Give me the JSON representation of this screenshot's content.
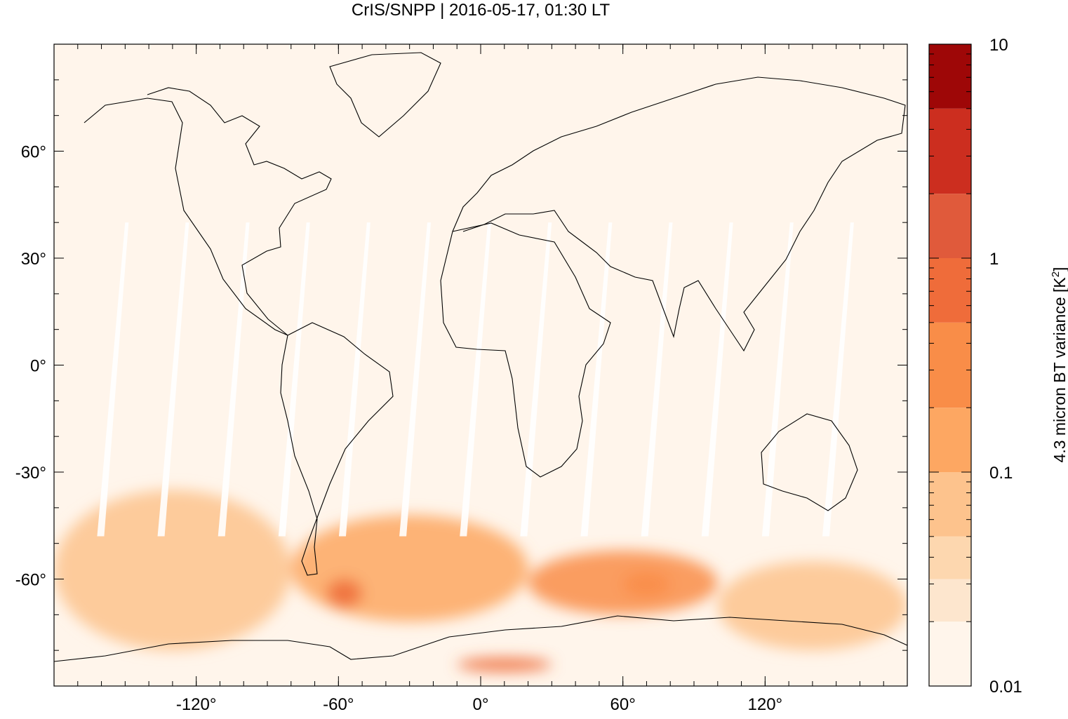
{
  "chart_data": {
    "type": "heatmap",
    "title": "CrIS/SNPP | 2016-05-17, 01:30 LT",
    "xlabel": "",
    "ylabel": "",
    "colorbar_label_main": "4.3 micron BT variance [K",
    "colorbar_label_sup": "2",
    "colorbar_label_end": "]",
    "xlim": [
      -180,
      180
    ],
    "ylim": [
      -90,
      90
    ],
    "xticks": [
      {
        "value": -120,
        "label": "-120°"
      },
      {
        "value": -60,
        "label": "-60°"
      },
      {
        "value": 0,
        "label": "0°"
      },
      {
        "value": 60,
        "label": "60°"
      },
      {
        "value": 120,
        "label": "120°"
      }
    ],
    "yticks": [
      {
        "value": 60,
        "label": "60°"
      },
      {
        "value": 30,
        "label": "30°"
      },
      {
        "value": 0,
        "label": "0°"
      },
      {
        "value": -30,
        "label": "-30°"
      },
      {
        "value": -60,
        "label": "-60°"
      }
    ],
    "color_scale": {
      "type": "log",
      "range": [
        0.01,
        10
      ],
      "tick_labels": [
        {
          "value": 10,
          "label": "10"
        },
        {
          "value": 1,
          "label": "1"
        },
        {
          "value": 0.1,
          "label": "0.1"
        },
        {
          "value": 0.01,
          "label": "0.01"
        }
      ],
      "levels": [
        {
          "min": 0.01,
          "max": 0.02,
          "color": "#fff5eb"
        },
        {
          "min": 0.02,
          "max": 0.0316,
          "color": "#fde6ce"
        },
        {
          "min": 0.0316,
          "max": 0.05,
          "color": "#fdd7af"
        },
        {
          "min": 0.05,
          "max": 0.1,
          "color": "#fdc38d"
        },
        {
          "min": 0.1,
          "max": 0.2,
          "color": "#fda762"
        },
        {
          "min": 0.2,
          "max": 0.5,
          "color": "#f98d48"
        },
        {
          "min": 0.5,
          "max": 1.0,
          "color": "#ef6c3a"
        },
        {
          "min": 1.0,
          "max": 2.0,
          "color": "#e05a3b"
        },
        {
          "min": 2.0,
          "max": 5.0,
          "color": "#cc2e1f"
        },
        {
          "min": 5.0,
          "max": 10.0,
          "color": "#9e0707"
        }
      ]
    },
    "background_color": "#fff5eb",
    "gap_color": "#ffffff",
    "regions": [
      {
        "desc": "South Pacific storm track",
        "lon": [
          -180,
          -80
        ],
        "lat": [
          -80,
          -35
        ],
        "value": 0.06
      },
      {
        "desc": "South Atlantic storm track",
        "lon": [
          -80,
          20
        ],
        "lat": [
          -72,
          -42
        ],
        "value": 0.15
      },
      {
        "desc": "Drake Passage maximum",
        "lon": [
          -65,
          -50
        ],
        "lat": [
          -68,
          -60
        ],
        "value": 0.8
      },
      {
        "desc": "Southern Indian Ocean",
        "lon": [
          20,
          100
        ],
        "lat": [
          -70,
          -52
        ],
        "value": 0.2
      },
      {
        "desc": "Southern Indian Ocean core",
        "lon": [
          60,
          80
        ],
        "lat": [
          -65,
          -58
        ],
        "value": 0.45
      },
      {
        "desc": "Antarctic coast band",
        "lon": [
          -10,
          30
        ],
        "lat": [
          -86,
          -82
        ],
        "value": 0.6
      },
      {
        "desc": "Australian sector south",
        "lon": [
          100,
          180
        ],
        "lat": [
          -80,
          -55
        ],
        "value": 0.05
      },
      {
        "desc": "Tropics and north",
        "lon": [
          -180,
          180
        ],
        "lat": [
          -35,
          90
        ],
        "value": 0.012
      }
    ]
  }
}
